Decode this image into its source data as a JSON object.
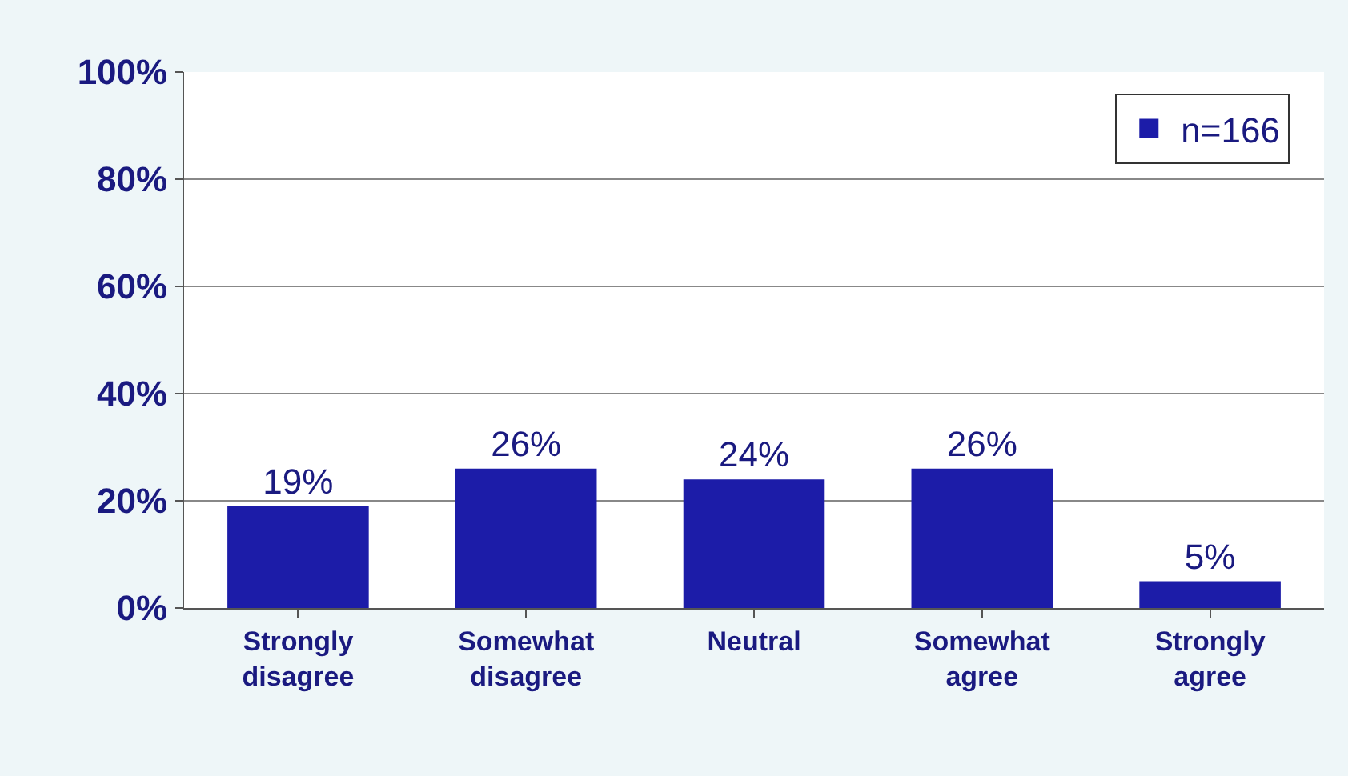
{
  "chart_data": {
    "type": "bar",
    "categories": [
      "Strongly disagree",
      "Somewhat disagree",
      "Neutral",
      "Somewhat agree",
      "Strongly agree"
    ],
    "series": [
      {
        "name": "n=166",
        "color": "#1c1ca8",
        "values": [
          19,
          26,
          24,
          26,
          5
        ],
        "value_labels": [
          "19%",
          "26%",
          "24%",
          "26%",
          "5%"
        ]
      }
    ],
    "ylim": [
      0,
      100
    ],
    "yticks": [
      {
        "value": 0,
        "label": "0%"
      },
      {
        "value": 20,
        "label": "20%"
      },
      {
        "value": 40,
        "label": "40%"
      },
      {
        "value": 60,
        "label": "60%"
      },
      {
        "value": 80,
        "label": "80%"
      },
      {
        "value": 100,
        "label": "100%"
      }
    ],
    "grid": "y",
    "legend": "top right"
  }
}
